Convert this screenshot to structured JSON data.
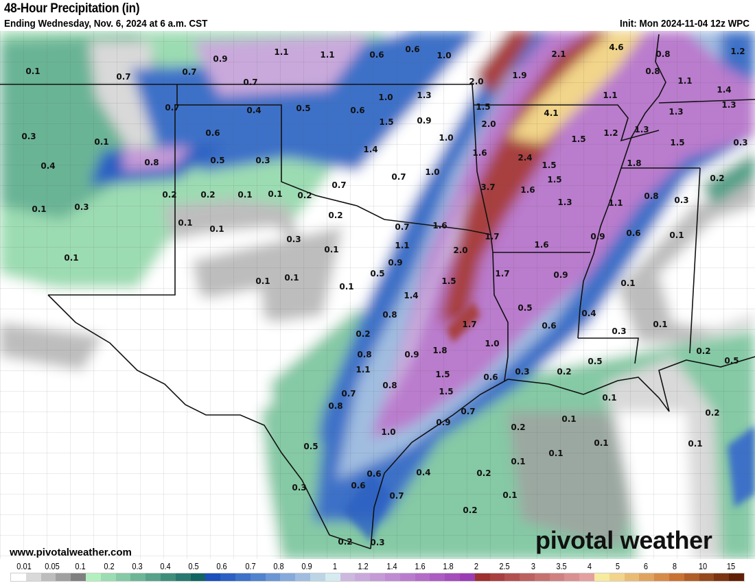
{
  "header": {
    "title": "48-Hour Precipitation (in)",
    "subtitle": "Ending Wednesday, Nov. 6, 2024 at 6 a.m. CST",
    "init": "Init: Mon 2024-11-04 12z WPC"
  },
  "footer": {
    "site": "www.pivotalweather.com",
    "logo": "pivotal weather"
  },
  "legend": {
    "unit": "in",
    "labels": [
      "0.01",
      "0.05",
      "0.1",
      "0.2",
      "0.3",
      "0.4",
      "0.5",
      "0.6",
      "0.7",
      "0.8",
      "0.9",
      "1",
      "1.2",
      "1.4",
      "1.6",
      "1.8",
      "2",
      "2.5",
      "3",
      "3.5",
      "4",
      "5",
      "6",
      "8",
      "10",
      "15"
    ],
    "colors": [
      "#ffffff",
      "#d9d9d9",
      "#bdbdbd",
      "#a0a0a0",
      "#808080",
      "#b3f0c0",
      "#9cdcb2",
      "#85c9a5",
      "#6db597",
      "#56a28a",
      "#3f8e7c",
      "#27796f",
      "#106562",
      "#1a4fbc",
      "#2c60c2",
      "#3e71c8",
      "#5082ce",
      "#6a96d4",
      "#85a9da",
      "#a0bde0",
      "#bcd5e6",
      "#d6ebf0",
      "#cdb8e0",
      "#c9a9db",
      "#c49ad7",
      "#bf8bd2",
      "#ba7bcd",
      "#b36cc7",
      "#ac5cc2",
      "#a44dbc",
      "#9c3cb4",
      "#9e3030",
      "#a84040",
      "#b25050",
      "#bc6060",
      "#c67070",
      "#d08080",
      "#da9090",
      "#e4a0a0",
      "#f7eb9d",
      "#f2d58a",
      "#e9bc74",
      "#e0a35e",
      "#d68b48",
      "#c97332",
      "#b05e27",
      "#96491c",
      "#7c3411",
      "#622006"
    ]
  },
  "map": {
    "labels": [
      "0.1",
      "0.7",
      "0.7",
      "0.9",
      "1.1",
      "1.1",
      "0.6",
      "0.6",
      "1.0",
      "2.1",
      "4.6",
      "0.8",
      "1.2",
      "0.7",
      "0.8",
      "1.1",
      "1.4",
      "1.9",
      "2.0",
      "0.7",
      "0.4",
      "0.5",
      "0.6",
      "1.0",
      "1.3",
      "1.1",
      "1.3",
      "1.3",
      "1.5",
      "4.1",
      "0.3",
      "0.1",
      "0.6",
      "1.5",
      "0.9",
      "2.0",
      "1.2",
      "1.3",
      "1.0",
      "1.5",
      "1.5",
      "0.3",
      "0.4",
      "0.8",
      "0.5",
      "0.3",
      "1.4",
      "1.6",
      "2.4",
      "1.5",
      "1.8",
      "1.0",
      "0.2",
      "0.7",
      "0.7",
      "3.7",
      "1.6",
      "1.5",
      "1.3",
      "0.8",
      "0.3",
      "1.1",
      "0.2",
      "0.2",
      "0.1",
      "0.1",
      "0.2",
      "0.1",
      "0.3",
      "0.2",
      "0.1",
      "0.1",
      "0.7",
      "1.6",
      "1.7",
      "0.9",
      "0.6",
      "0.1",
      "1.6",
      "0.3",
      "1.1",
      "2.0",
      "0.1",
      "0.1",
      "0.9",
      "1.7",
      "0.9",
      "0.1",
      "0.1",
      "0.5",
      "1.5",
      "0.1",
      "0.1",
      "1.4",
      "0.5",
      "0.8",
      "0.6",
      "0.4",
      "1.7",
      "0.1",
      "0.3",
      "0.2",
      "1.0",
      "0.8",
      "0.9",
      "1.8",
      "0.5",
      "0.2",
      "1.1",
      "1.5",
      "0.6",
      "0.3",
      "0.2",
      "0.5",
      "0.7",
      "0.8",
      "1.5",
      "0.7",
      "0.8",
      "0.1",
      "0.2",
      "0.9",
      "0.1",
      "0.2",
      "1.0",
      "0.1",
      "0.1",
      "0.5",
      "0.1",
      "0.1",
      "0.6",
      "0.4",
      "0.2",
      "0.3",
      "0.6",
      "0.7",
      "0.1",
      "0.2",
      "0.2",
      "0.3"
    ]
  }
}
